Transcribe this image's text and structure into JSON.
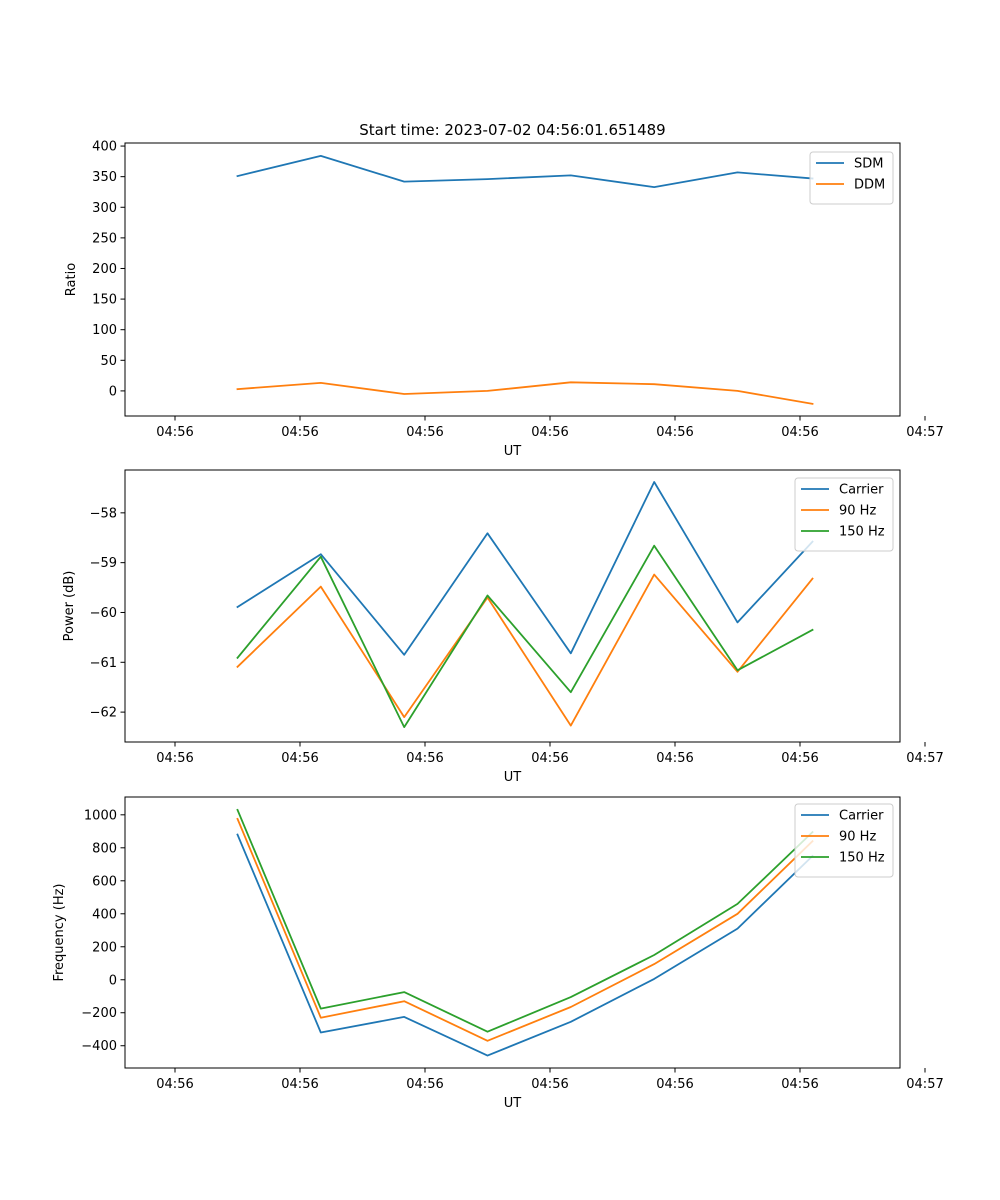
{
  "chart_data": [
    {
      "type": "line",
      "title": "Start time: 2023-07-02 04:56:01.651489",
      "xlabel": "UT",
      "ylabel": "Ratio",
      "xlim": [
        -0.6,
        8.7
      ],
      "x": [
        0.75,
        1.75,
        2.75,
        3.75,
        4.75,
        5.75,
        6.75,
        7.65
      ],
      "xticks": [
        0,
        1.5,
        3,
        4.5,
        6,
        7.5,
        9
      ],
      "xtick_labels": [
        "04:56",
        "04:56",
        "04:56",
        "04:56",
        "04:56",
        "04:56",
        "04:57"
      ],
      "ylim": [
        -41,
        405
      ],
      "yticks": [
        0,
        50,
        100,
        150,
        200,
        250,
        300,
        350,
        400
      ],
      "legend_position": "top-right",
      "series": [
        {
          "name": "SDM",
          "color": "#1f77b4",
          "values": [
            351,
            384,
            342,
            346,
            352,
            333,
            357,
            347
          ]
        },
        {
          "name": "DDM",
          "color": "#ff7f0e",
          "values": [
            3,
            13,
            -5,
            0,
            14,
            11,
            0,
            -21
          ]
        }
      ]
    },
    {
      "type": "line",
      "title": "",
      "xlabel": "UT",
      "ylabel": "Power (dB)",
      "xlim": [
        -0.6,
        8.7
      ],
      "x": [
        0.75,
        1.75,
        2.75,
        3.75,
        4.75,
        5.75,
        6.75,
        7.65
      ],
      "xticks": [
        0,
        1.5,
        3,
        4.5,
        6,
        7.5,
        9
      ],
      "xtick_labels": [
        "04:56",
        "04:56",
        "04:56",
        "04:56",
        "04:56",
        "04:56",
        "04:57"
      ],
      "ylim": [
        -62.6,
        -57.14
      ],
      "yticks": [
        -62,
        -61,
        -60,
        -59,
        -58
      ],
      "ytick_labels": [
        "−62",
        "−61",
        "−60",
        "−59",
        "−58"
      ],
      "legend_position": "top-right",
      "series": [
        {
          "name": "Carrier",
          "color": "#1f77b4",
          "values": [
            -59.89,
            -58.83,
            -60.85,
            -58.41,
            -60.82,
            -57.38,
            -60.2,
            -58.58
          ]
        },
        {
          "name": "90 Hz",
          "color": "#ff7f0e",
          "values": [
            -61.09,
            -59.48,
            -62.1,
            -59.7,
            -62.27,
            -59.24,
            -61.19,
            -59.32
          ]
        },
        {
          "name": "150 Hz",
          "color": "#2ca02c",
          "values": [
            -60.91,
            -58.88,
            -62.3,
            -59.66,
            -61.6,
            -58.66,
            -61.16,
            -60.35
          ]
        }
      ]
    },
    {
      "type": "line",
      "title": "",
      "xlabel": "UT",
      "ylabel": "Frequency (Hz)",
      "xlim": [
        -0.6,
        8.7
      ],
      "x": [
        0.75,
        1.75,
        2.75,
        3.75,
        4.75,
        5.75,
        6.75,
        7.65
      ],
      "xticks": [
        0,
        1.5,
        3,
        4.5,
        6,
        7.5,
        9
      ],
      "xtick_labels": [
        "04:56",
        "04:56",
        "04:56",
        "04:56",
        "04:56",
        "04:56",
        "04:57"
      ],
      "ylim": [
        -535,
        1108
      ],
      "yticks": [
        -400,
        -200,
        0,
        200,
        400,
        600,
        800,
        1000
      ],
      "ytick_labels": [
        "−400",
        "−200",
        "0",
        "200",
        "400",
        "600",
        "800",
        "1000"
      ],
      "legend_position": "top-right",
      "series": [
        {
          "name": "Carrier",
          "color": "#1f77b4",
          "values": [
            880,
            -320,
            -225,
            -460,
            -255,
            5,
            310,
            750
          ]
        },
        {
          "name": "90 Hz",
          "color": "#ff7f0e",
          "values": [
            975,
            -230,
            -130,
            -370,
            -165,
            95,
            400,
            840
          ]
        },
        {
          "name": "150 Hz",
          "color": "#2ca02c",
          "values": [
            1030,
            -175,
            -75,
            -315,
            -105,
            150,
            460,
            895
          ]
        }
      ]
    }
  ]
}
